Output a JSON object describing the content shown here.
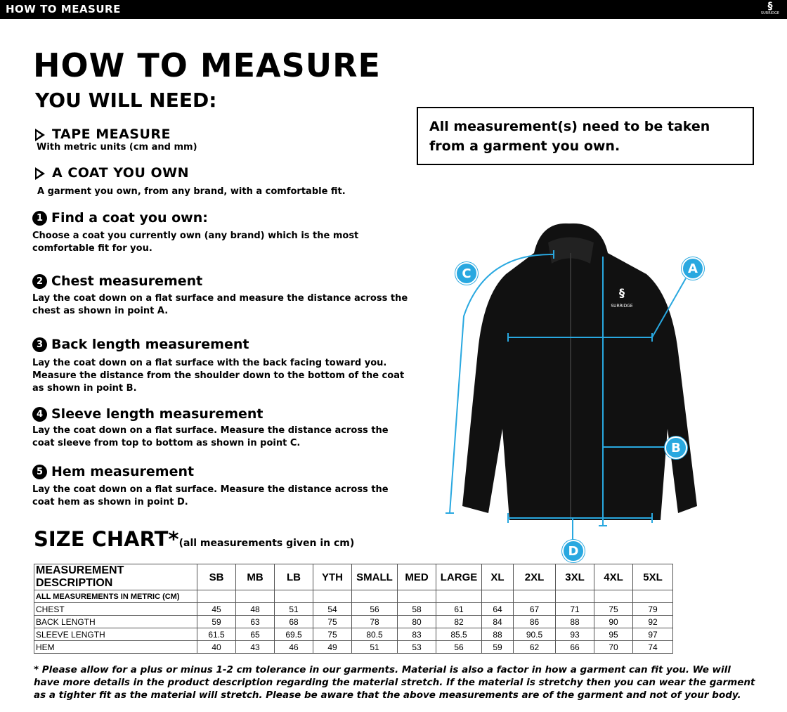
{
  "topbar": {
    "title": "HOW TO MEASURE",
    "logo": "SURRIDGE"
  },
  "heading": "HOW TO MEASURE",
  "need_heading": "YOU WILL NEED:",
  "needs": [
    {
      "label": "TAPE MEASURE",
      "desc": "With metric units (cm and mm)"
    },
    {
      "label": "A COAT YOU OWN",
      "desc": "A garment you own, from any brand, with a comfortable fit."
    }
  ],
  "steps": [
    {
      "num": "1",
      "title": "Find a coat you own:",
      "text": "Choose a coat you currently own (any brand) which is the most comfortable fit for you."
    },
    {
      "num": "2",
      "title": "Chest measurement",
      "text": "Lay the coat down on a flat surface and measure the distance across the chest as shown in point A."
    },
    {
      "num": "3",
      "title": "Back length measurement",
      "text": "Lay the coat down on a flat surface with the back facing toward you. Measure the distance from the shoulder down to the bottom of the coat as shown in point B."
    },
    {
      "num": "4",
      "title": "Sleeve length measurement",
      "text": "Lay the coat down on a flat surface. Measure the distance across the coat sleeve from top to bottom as shown in point C."
    },
    {
      "num": "5",
      "title": "Hem measurement",
      "text": "Lay the coat down on a flat surface. Measure the distance across the coat hem as shown in point D."
    }
  ],
  "note": "All measurement(s) need to be taken from a garment you own.",
  "diagram": {
    "points": [
      "A",
      "B",
      "C",
      "D"
    ],
    "logo": "SURRIDGE",
    "accent": "#29a8e0"
  },
  "size_chart": {
    "title": "SIZE CHART*",
    "subtitle": "(all measurements given in cm)",
    "header": "MEASUREMENT DESCRIPTION",
    "sizes": [
      "SB",
      "MB",
      "LB",
      "YTH",
      "SMALL",
      "MED",
      "LARGE",
      "XL",
      "2XL",
      "3XL",
      "4XL",
      "5XL"
    ],
    "subheader": "ALL MEASUREMENTS IN METRIC (CM)",
    "rows": [
      {
        "label": "CHEST",
        "values": [
          "45",
          "48",
          "51",
          "54",
          "56",
          "58",
          "61",
          "64",
          "67",
          "71",
          "75",
          "79"
        ]
      },
      {
        "label": "BACK LENGTH",
        "values": [
          "59",
          "63",
          "68",
          "75",
          "78",
          "80",
          "82",
          "84",
          "86",
          "88",
          "90",
          "92"
        ]
      },
      {
        "label": "SLEEVE LENGTH",
        "values": [
          "61.5",
          "65",
          "69.5",
          "75",
          "80.5",
          "83",
          "85.5",
          "88",
          "90.5",
          "93",
          "95",
          "97"
        ]
      },
      {
        "label": "HEM",
        "values": [
          "40",
          "43",
          "46",
          "49",
          "51",
          "53",
          "56",
          "59",
          "62",
          "66",
          "70",
          "74"
        ]
      }
    ]
  },
  "footnote": "* Please allow for a plus or minus 1-2 cm tolerance in our garments. Material is also a factor in how a garment can fit you. We will have more details in the product description regarding the material stretch.  If the material is stretchy then you can wear the garment as a tighter fit as the material will stretch.  Please be aware that the above measurements are of the garment and not of your body."
}
